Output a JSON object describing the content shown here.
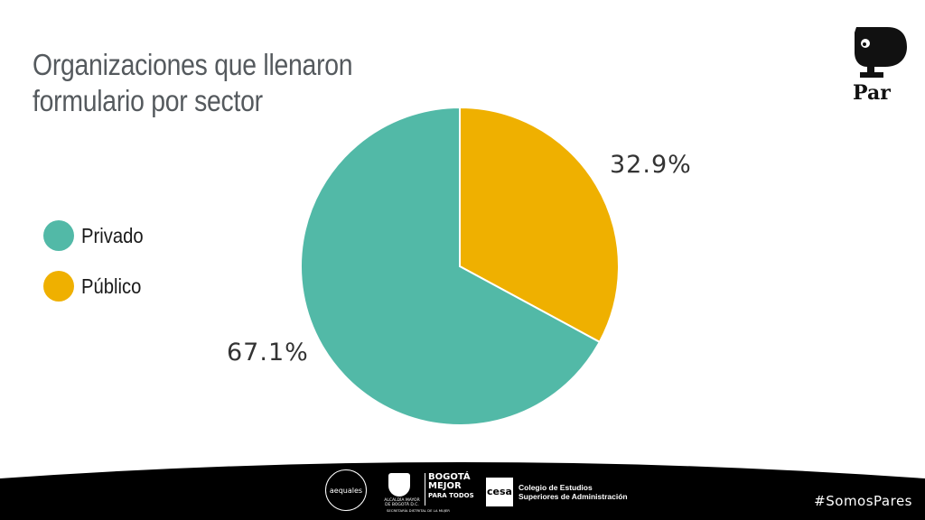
{
  "slide": {
    "title_lines": [
      "Organizaciones que llenaron",
      "formulario por sector"
    ],
    "logo_text": "Par",
    "hashtag": "#SomosPares"
  },
  "footer": {
    "aequales_text": "aequales",
    "alcaldia_text": "ALCALDÍA MAYOR DE BOGOTÁ D.C.",
    "bogota_lines": [
      "BOGOTÁ",
      "MEJOR",
      "PARA TODOS"
    ],
    "secretaria_text": "SECRETARÍA DISTRITAL DE LA MUJER",
    "cesa_mark": "cesa",
    "cesa_lines": [
      "Colegio de Estudios",
      "Superiores de Administración"
    ]
  },
  "chart_data": {
    "type": "pie",
    "categories": [
      "Privado",
      "Público"
    ],
    "values": [
      67.1,
      32.9
    ],
    "labels": [
      "67.1%",
      "32.9%"
    ],
    "colors": [
      "#52b9a7",
      "#efb000"
    ],
    "legend": "left"
  }
}
